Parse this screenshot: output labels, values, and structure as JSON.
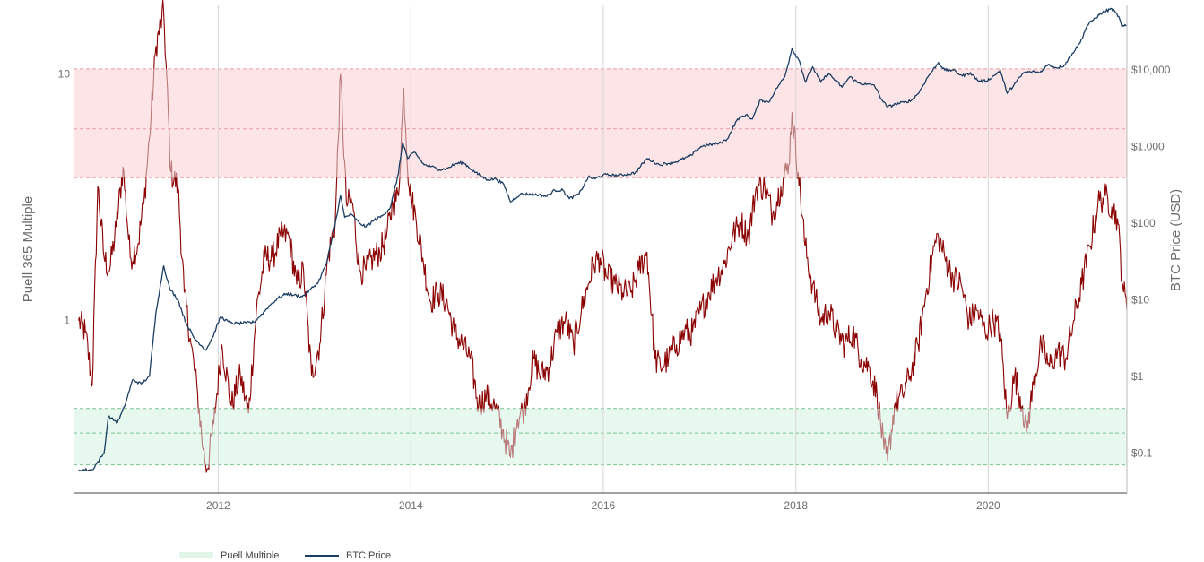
{
  "chart_data": {
    "type": "line",
    "title": "",
    "x_axis": {
      "type": "date",
      "range": [
        "2010-07-01",
        "2021-06-10"
      ],
      "tick_labels": [
        "2012",
        "2014",
        "2016",
        "2018",
        "2020"
      ],
      "tick_dates": [
        "2012-01-01",
        "2014-01-01",
        "2016-01-01",
        "2018-01-01",
        "2020-01-01"
      ],
      "grid": true
    },
    "y_left": {
      "label": "Puell 365 Multiple",
      "scale": "log",
      "range": [
        0.2,
        19
      ],
      "tick_values": [
        1,
        10
      ],
      "tick_labels": [
        "1",
        "10"
      ]
    },
    "y_right": {
      "label": "BTC Price (USD)",
      "scale": "log",
      "range": [
        0.03,
        70000
      ],
      "tick_values": [
        0.1,
        1,
        10,
        100,
        1000,
        10000
      ],
      "tick_labels": [
        "$0.1",
        "$1",
        "$10",
        "$100",
        "$1,000",
        "$10,000"
      ]
    },
    "bands": [
      {
        "axis": "y_left",
        "from": 3.8,
        "to": 10.5,
        "color": "#fde4e6",
        "line_color": "#e89aa0",
        "mid": 6.0
      },
      {
        "axis": "y_left",
        "from": 0.26,
        "to": 0.44,
        "color": "#e7f8ee",
        "line_color": "#7cc48f",
        "mid": 0.35
      }
    ],
    "legend_entries": [
      "Puell Multiple",
      "BTC Price"
    ],
    "legend_placement": "bottom-left",
    "series": [
      {
        "name": "Puell Multiple",
        "axis": "y_left",
        "color": "#8b0000",
        "highlight_color": "#b87a7a",
        "x": [
          "2010-07-20",
          "2010-08-15",
          "2010-09-10",
          "2010-10-01",
          "2010-10-25",
          "2010-11-15",
          "2010-12-10",
          "2011-01-05",
          "2011-02-01",
          "2011-03-01",
          "2011-03-25",
          "2011-04-15",
          "2011-05-10",
          "2011-06-08",
          "2011-07-05",
          "2011-08-01",
          "2011-08-25",
          "2011-09-20",
          "2011-10-15",
          "2011-11-05",
          "2011-11-20",
          "2011-12-15",
          "2012-01-15",
          "2012-02-20",
          "2012-03-25",
          "2012-04-25",
          "2012-05-25",
          "2012-06-25",
          "2012-07-25",
          "2012-08-25",
          "2012-09-25",
          "2012-10-25",
          "2012-11-20",
          "2012-12-20",
          "2013-01-20",
          "2013-02-20",
          "2013-03-20",
          "2013-04-09",
          "2013-05-01",
          "2013-05-25",
          "2013-06-20",
          "2013-07-15",
          "2013-08-10",
          "2013-09-05",
          "2013-10-01",
          "2013-10-25",
          "2013-11-15",
          "2013-12-05",
          "2013-12-25",
          "2014-01-20",
          "2014-02-15",
          "2014-03-15",
          "2014-04-15",
          "2014-05-15",
          "2014-06-15",
          "2014-07-15",
          "2014-08-15",
          "2014-09-15",
          "2014-10-15",
          "2014-11-15",
          "2014-12-15",
          "2015-01-14",
          "2015-02-10",
          "2015-03-10",
          "2015-04-10",
          "2015-05-10",
          "2015-06-10",
          "2015-07-10",
          "2015-08-10",
          "2015-09-10",
          "2015-10-10",
          "2015-11-05",
          "2015-11-25",
          "2015-12-20",
          "2016-01-15",
          "2016-02-15",
          "2016-03-15",
          "2016-04-15",
          "2016-05-15",
          "2016-06-15",
          "2016-07-15",
          "2016-08-05",
          "2016-09-05",
          "2016-10-05",
          "2016-11-05",
          "2016-12-05",
          "2017-01-05",
          "2017-02-05",
          "2017-03-05",
          "2017-04-05",
          "2017-05-05",
          "2017-06-05",
          "2017-07-05",
          "2017-08-05",
          "2017-09-05",
          "2017-10-05",
          "2017-11-05",
          "2017-12-05",
          "2017-12-17",
          "2018-01-10",
          "2018-02-05",
          "2018-03-05",
          "2018-04-05",
          "2018-05-05",
          "2018-06-05",
          "2018-07-05",
          "2018-08-05",
          "2018-09-05",
          "2018-10-05",
          "2018-11-05",
          "2018-12-01",
          "2018-12-15",
          "2019-01-10",
          "2019-02-10",
          "2019-03-10",
          "2019-04-10",
          "2019-05-10",
          "2019-06-10",
          "2019-06-26",
          "2019-07-20",
          "2019-08-20",
          "2019-09-20",
          "2019-10-20",
          "2019-11-20",
          "2019-12-20",
          "2020-01-20",
          "2020-02-15",
          "2020-03-13",
          "2020-04-10",
          "2020-05-10",
          "2020-05-25",
          "2020-06-20",
          "2020-07-20",
          "2020-08-20",
          "2020-09-20",
          "2020-10-20",
          "2020-11-20",
          "2020-12-20",
          "2021-01-20",
          "2021-02-20",
          "2021-03-20",
          "2021-04-14",
          "2021-05-05",
          "2021-05-25",
          "2021-06-10"
        ],
        "values": [
          1.0,
          0.9,
          0.55,
          3.5,
          1.8,
          1.6,
          2.4,
          4.2,
          1.8,
          2.0,
          3.0,
          5.5,
          13.0,
          18.0,
          4.0,
          3.5,
          1.3,
          0.8,
          0.5,
          0.3,
          0.25,
          0.38,
          0.8,
          0.45,
          0.6,
          0.42,
          1.1,
          1.8,
          1.8,
          2.2,
          2.2,
          1.4,
          1.6,
          0.6,
          0.8,
          1.8,
          2.5,
          10.0,
          3.0,
          3.0,
          1.6,
          1.6,
          1.8,
          1.9,
          2.2,
          3.0,
          3.2,
          8.8,
          3.5,
          2.6,
          1.8,
          1.2,
          1.3,
          1.2,
          0.9,
          0.8,
          0.7,
          0.45,
          0.5,
          0.45,
          0.36,
          0.28,
          0.4,
          0.45,
          0.7,
          0.6,
          0.65,
          0.9,
          1.0,
          0.8,
          1.1,
          1.4,
          1.7,
          1.8,
          1.5,
          1.4,
          1.3,
          1.3,
          1.6,
          1.9,
          0.7,
          0.65,
          0.7,
          0.8,
          0.9,
          0.9,
          1.1,
          1.3,
          1.5,
          1.7,
          2.2,
          2.5,
          2.2,
          3.5,
          3.5,
          2.7,
          3.5,
          4.3,
          7.0,
          4.0,
          2.0,
          1.4,
          1.0,
          1.1,
          0.9,
          0.8,
          0.9,
          0.7,
          0.65,
          0.5,
          0.3,
          0.27,
          0.45,
          0.5,
          0.6,
          0.8,
          1.3,
          2.0,
          2.2,
          1.8,
          1.5,
          1.4,
          1.0,
          1.1,
          0.9,
          1.0,
          0.9,
          0.4,
          0.6,
          0.45,
          0.35,
          0.55,
          0.8,
          0.65,
          0.75,
          0.7,
          1.0,
          1.4,
          2.0,
          3.0,
          3.2,
          2.9,
          2.6,
          1.4,
          1.1
        ]
      },
      {
        "name": "BTC Price",
        "axis": "y_right",
        "color": "#1a3d63",
        "x": [
          "2010-07-20",
          "2010-09-10",
          "2010-10-25",
          "2010-11-10",
          "2010-12-15",
          "2011-01-10",
          "2011-02-10",
          "2011-03-15",
          "2011-04-15",
          "2011-05-10",
          "2011-06-08",
          "2011-07-01",
          "2011-08-01",
          "2011-09-01",
          "2011-10-01",
          "2011-11-15",
          "2011-12-10",
          "2012-01-10",
          "2012-02-15",
          "2012-03-15",
          "2012-04-15",
          "2012-05-15",
          "2012-06-15",
          "2012-07-15",
          "2012-08-15",
          "2012-09-15",
          "2012-10-15",
          "2012-11-15",
          "2012-12-15",
          "2013-01-15",
          "2013-02-15",
          "2013-03-15",
          "2013-04-09",
          "2013-04-25",
          "2013-05-20",
          "2013-06-20",
          "2013-07-15",
          "2013-08-15",
          "2013-09-15",
          "2013-10-15",
          "2013-11-15",
          "2013-12-01",
          "2013-12-20",
          "2014-01-15",
          "2014-02-20",
          "2014-03-20",
          "2014-04-20",
          "2014-05-20",
          "2014-06-20",
          "2014-07-20",
          "2014-08-20",
          "2014-09-20",
          "2014-10-20",
          "2014-11-20",
          "2014-12-20",
          "2015-01-14",
          "2015-02-20",
          "2015-04-01",
          "2015-05-01",
          "2015-06-01",
          "2015-07-01",
          "2015-08-01",
          "2015-08-25",
          "2015-10-01",
          "2015-11-05",
          "2015-12-01",
          "2016-01-01",
          "2016-03-01",
          "2016-05-01",
          "2016-06-15",
          "2016-08-01",
          "2016-10-01",
          "2016-12-01",
          "2017-01-05",
          "2017-02-01",
          "2017-03-15",
          "2017-04-15",
          "2017-05-25",
          "2017-06-25",
          "2017-07-20",
          "2017-08-20",
          "2017-09-20",
          "2017-10-20",
          "2017-11-20",
          "2017-12-17",
          "2018-01-15",
          "2018-02-06",
          "2018-03-05",
          "2018-04-05",
          "2018-05-05",
          "2018-06-25",
          "2018-07-25",
          "2018-08-25",
          "2018-09-25",
          "2018-10-25",
          "2018-11-25",
          "2018-12-15",
          "2019-01-15",
          "2019-02-15",
          "2019-03-15",
          "2019-04-15",
          "2019-05-15",
          "2019-06-26",
          "2019-07-20",
          "2019-08-20",
          "2019-09-25",
          "2019-10-25",
          "2019-11-25",
          "2019-12-25",
          "2020-01-25",
          "2020-02-15",
          "2020-03-13",
          "2020-04-15",
          "2020-05-15",
          "2020-06-15",
          "2020-07-15",
          "2020-08-15",
          "2020-09-15",
          "2020-10-15",
          "2020-11-15",
          "2020-12-15",
          "2021-01-10",
          "2021-02-10",
          "2021-03-10",
          "2021-04-14",
          "2021-05-10",
          "2021-05-22",
          "2021-06-10"
        ],
        "values": [
          0.06,
          0.06,
          0.1,
          0.3,
          0.25,
          0.4,
          0.9,
          0.8,
          1.0,
          7.0,
          28.0,
          14.0,
          10.0,
          5.0,
          3.2,
          2.2,
          3.2,
          6.0,
          5.0,
          4.9,
          5.0,
          5.1,
          6.5,
          8.5,
          10.5,
          12.0,
          11.5,
          11.0,
          13.5,
          17.0,
          30.0,
          80.0,
          230.0,
          120.0,
          130.0,
          100.0,
          90.0,
          110.0,
          125.0,
          160.0,
          450.0,
          1150.0,
          700.0,
          850.0,
          580.0,
          550.0,
          500.0,
          520.0,
          600.0,
          620.0,
          500.0,
          420.0,
          370.0,
          380.0,
          320.0,
          190.0,
          240.0,
          240.0,
          235.0,
          225.0,
          270.0,
          270.0,
          210.0,
          240.0,
          400.0,
          380.0,
          430.0,
          420.0,
          455.0,
          700.0,
          580.0,
          630.0,
          770.0,
          1000.0,
          1050.0,
          1100.0,
          1250.0,
          2300.0,
          2600.0,
          2300.0,
          4100.0,
          3800.0,
          5800.0,
          8200.0,
          19000.0,
          13000.0,
          7000.0,
          11000.0,
          7000.0,
          9000.0,
          6000.0,
          8200.0,
          6800.0,
          6500.0,
          6400.0,
          4000.0,
          3300.0,
          3600.0,
          3800.0,
          4000.0,
          5200.0,
          8000.0,
          12500.0,
          10000.0,
          10000.0,
          8400.0,
          9200.0,
          7200.0,
          7200.0,
          8500.0,
          10000.0,
          5000.0,
          6900.0,
          9300.0,
          9500.0,
          9300.0,
          11800.0,
          10700.0,
          11500.0,
          16500.0,
          23000.0,
          38000.0,
          48000.0,
          57000.0,
          63000.0,
          50000.0,
          37000.0,
          38000.0
        ]
      }
    ]
  }
}
